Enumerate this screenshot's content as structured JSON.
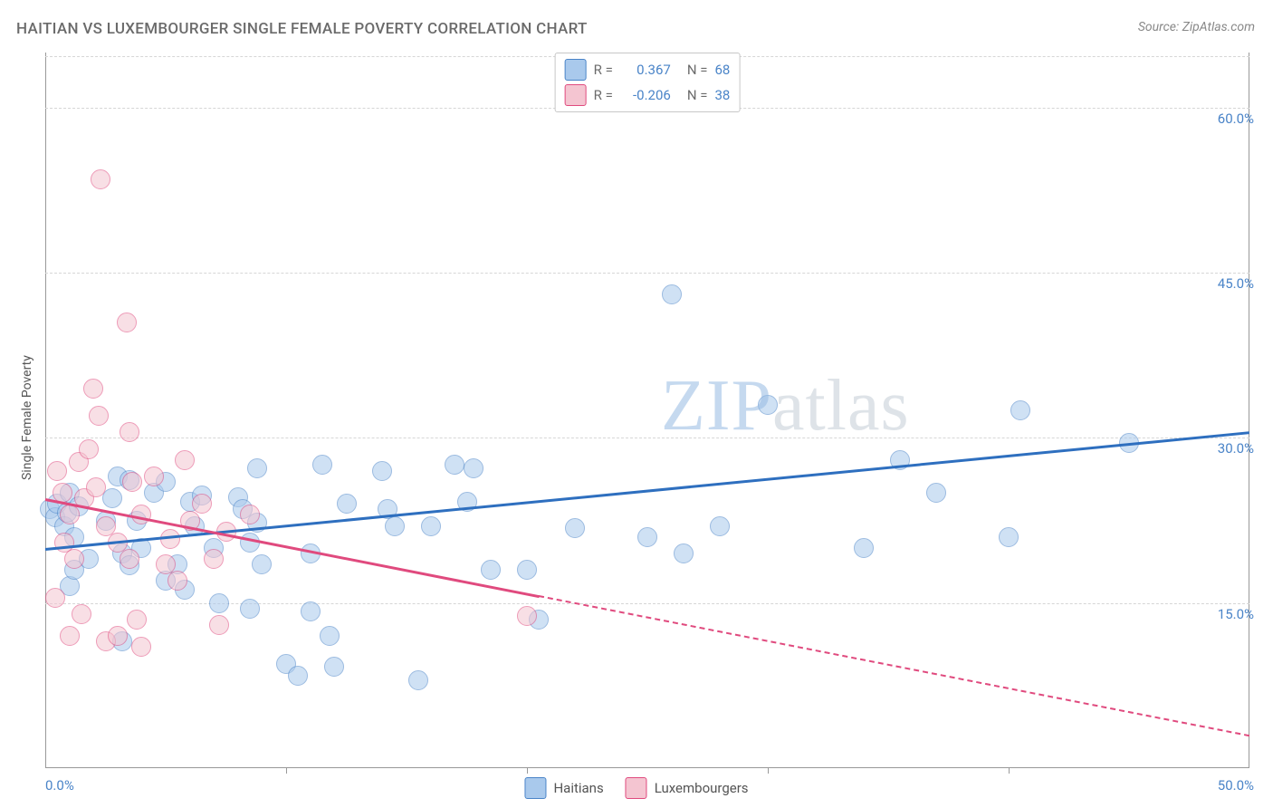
{
  "title": "HAITIAN VS LUXEMBOURGER SINGLE FEMALE POVERTY CORRELATION CHART",
  "source": "Source: ZipAtlas.com",
  "ylabel": "Single Female Poverty",
  "watermark_a": "ZIP",
  "watermark_b": "atlas",
  "chart": {
    "type": "scatter",
    "background_color": "#ffffff",
    "grid_color": "#d6d6d6",
    "axis_color": "#999999",
    "xlim": [
      0,
      50
    ],
    "ylim": [
      0,
      65
    ],
    "yticks": [
      15,
      30,
      45,
      60
    ],
    "ytick_labels": [
      "15.0%",
      "30.0%",
      "45.0%",
      "60.0%"
    ],
    "xticks": [
      0,
      10,
      20,
      30,
      40,
      50
    ],
    "xtick_labels_visible": [
      "0.0%",
      "50.0%"
    ],
    "point_diameter": 20,
    "point_opacity": 0.55,
    "series": [
      {
        "name": "Haitians",
        "color_fill": "#a9c9ec",
        "color_stroke": "#4a84c8",
        "R": "0.367",
        "N": "68",
        "trend": {
          "x1": 0,
          "y1": 20.0,
          "x2": 50,
          "y2": 30.6,
          "solid_until_x": 50,
          "color": "#2e6fbf"
        },
        "points": [
          [
            0.2,
            23.5
          ],
          [
            0.4,
            22.8
          ],
          [
            0.5,
            24.0
          ],
          [
            0.8,
            22.0
          ],
          [
            0.9,
            23.2
          ],
          [
            1.0,
            25.0
          ],
          [
            1.2,
            21.0
          ],
          [
            1.4,
            23.8
          ],
          [
            1.0,
            16.5
          ],
          [
            1.2,
            18.0
          ],
          [
            1.8,
            19.0
          ],
          [
            2.5,
            22.5
          ],
          [
            2.8,
            24.5
          ],
          [
            3.0,
            26.5
          ],
          [
            3.2,
            19.5
          ],
          [
            3.5,
            18.4
          ],
          [
            3.5,
            26.2
          ],
          [
            3.8,
            22.5
          ],
          [
            3.2,
            11.5
          ],
          [
            4.0,
            20.0
          ],
          [
            4.5,
            25.0
          ],
          [
            5.0,
            17.0
          ],
          [
            5.0,
            26.0
          ],
          [
            5.5,
            18.5
          ],
          [
            5.8,
            16.2
          ],
          [
            6.0,
            24.2
          ],
          [
            6.2,
            22.0
          ],
          [
            6.5,
            24.8
          ],
          [
            7.0,
            20.0
          ],
          [
            7.2,
            15.0
          ],
          [
            8.0,
            24.6
          ],
          [
            8.2,
            23.5
          ],
          [
            8.5,
            20.5
          ],
          [
            8.8,
            22.3
          ],
          [
            8.5,
            14.5
          ],
          [
            9.0,
            18.5
          ],
          [
            8.8,
            27.2
          ],
          [
            10.0,
            9.5
          ],
          [
            10.5,
            8.4
          ],
          [
            11.0,
            14.2
          ],
          [
            11.5,
            27.6
          ],
          [
            11.8,
            12.0
          ],
          [
            12.0,
            9.2
          ],
          [
            11.0,
            19.5
          ],
          [
            12.5,
            24.0
          ],
          [
            14.0,
            27.0
          ],
          [
            14.2,
            23.5
          ],
          [
            14.5,
            22.0
          ],
          [
            15.5,
            8.0
          ],
          [
            16.0,
            22.0
          ],
          [
            17.5,
            24.2
          ],
          [
            17.0,
            27.6
          ],
          [
            17.8,
            27.2
          ],
          [
            18.5,
            18.0
          ],
          [
            20.0,
            18.0
          ],
          [
            20.5,
            13.5
          ],
          [
            22.0,
            21.8
          ],
          [
            25.0,
            21.0
          ],
          [
            26.0,
            43.0
          ],
          [
            26.5,
            19.5
          ],
          [
            28.0,
            22.0
          ],
          [
            30.0,
            33.0
          ],
          [
            34.0,
            20.0
          ],
          [
            35.5,
            28.0
          ],
          [
            37.0,
            25.0
          ],
          [
            40.0,
            21.0
          ],
          [
            40.5,
            32.5
          ],
          [
            45.0,
            29.5
          ]
        ]
      },
      {
        "name": "Luxembourgers",
        "color_fill": "#f4c5d1",
        "color_stroke": "#e04a7e",
        "R": "-0.206",
        "N": "38",
        "trend": {
          "x1": 0,
          "y1": 24.5,
          "x2": 50,
          "y2": 3.0,
          "solid_until_x": 20.5,
          "color": "#e04a7e"
        },
        "points": [
          [
            0.5,
            27.0
          ],
          [
            0.7,
            25.0
          ],
          [
            0.8,
            20.5
          ],
          [
            0.4,
            15.5
          ],
          [
            1.0,
            23.0
          ],
          [
            1.2,
            19.0
          ],
          [
            1.4,
            27.8
          ],
          [
            1.5,
            14.0
          ],
          [
            1.6,
            24.5
          ],
          [
            1.8,
            29.0
          ],
          [
            1.0,
            12.0
          ],
          [
            2.0,
            34.5
          ],
          [
            2.1,
            25.5
          ],
          [
            2.2,
            32.0
          ],
          [
            2.3,
            53.5
          ],
          [
            2.5,
            22.0
          ],
          [
            2.5,
            11.5
          ],
          [
            3.0,
            20.5
          ],
          [
            3.0,
            12.0
          ],
          [
            3.5,
            19.0
          ],
          [
            3.6,
            26.0
          ],
          [
            3.8,
            13.5
          ],
          [
            3.5,
            30.5
          ],
          [
            4.0,
            23.0
          ],
          [
            4.0,
            11.0
          ],
          [
            3.4,
            40.5
          ],
          [
            4.5,
            26.5
          ],
          [
            5.0,
            18.5
          ],
          [
            5.2,
            20.8
          ],
          [
            5.5,
            17.0
          ],
          [
            5.8,
            28.0
          ],
          [
            6.0,
            22.5
          ],
          [
            6.5,
            24.0
          ],
          [
            7.0,
            19.0
          ],
          [
            7.2,
            13.0
          ],
          [
            7.5,
            21.5
          ],
          [
            8.5,
            23.0
          ],
          [
            20.0,
            13.8
          ]
        ]
      }
    ],
    "legend_top": {
      "border_color": "#c7c7c7",
      "label_R": "R =",
      "label_N": "N ="
    },
    "legend_bottom": [
      {
        "label": "Haitians",
        "fill": "#a9c9ec",
        "stroke": "#4a84c8"
      },
      {
        "label": "Luxembourgers",
        "fill": "#f4c5d1",
        "stroke": "#e04a7e"
      }
    ]
  }
}
